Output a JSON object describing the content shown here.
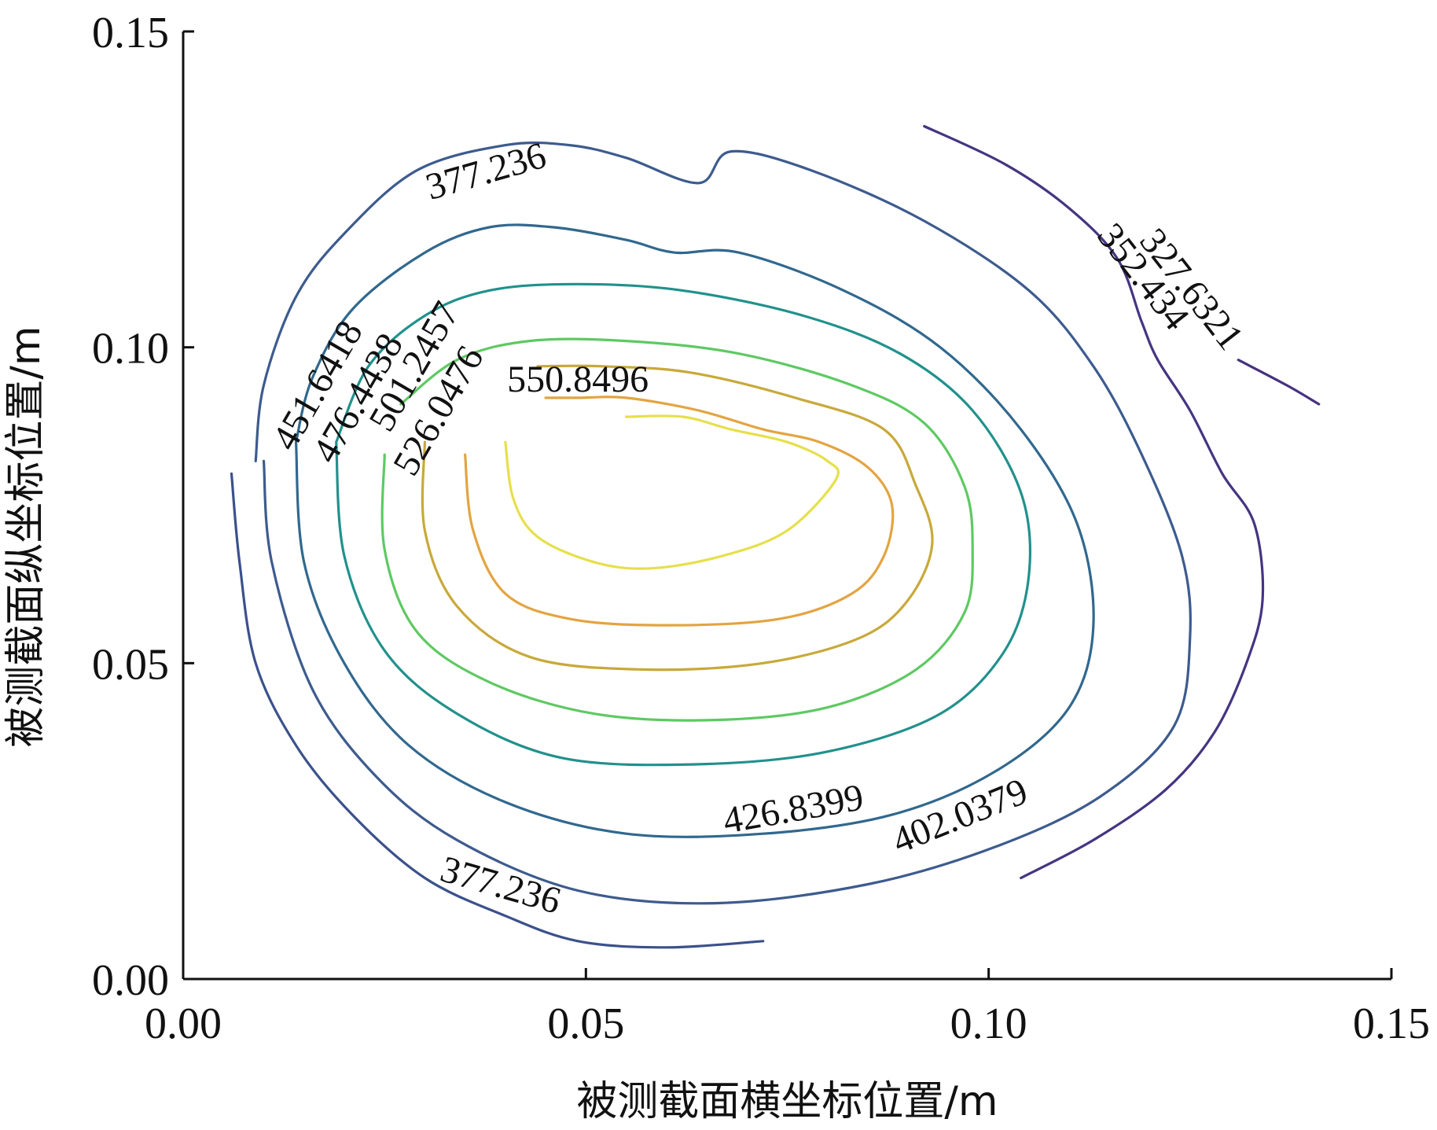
{
  "chart_data": {
    "type": "contour",
    "xlabel": "被测截面横坐标位置/m",
    "ylabel": "被测截面纵坐标位置/m",
    "xlim": [
      0,
      0.15
    ],
    "ylim": [
      0,
      0.15
    ],
    "xticks": [
      "0.00",
      "0.05",
      "0.10",
      "0.15"
    ],
    "yticks": [
      "0.00",
      "0.05",
      "0.10",
      "0.15"
    ],
    "xtick_values": [
      0,
      0.05,
      0.1,
      0.15
    ],
    "ytick_values": [
      0,
      0.05,
      0.1,
      0.15
    ],
    "colormap": "viridis",
    "contour_levels": [
      {
        "value": 327.6321,
        "label": "327.6321",
        "color": "#46327e",
        "points": [
          [
            0.131,
            0.098
          ],
          [
            0.137,
            0.094
          ],
          [
            0.141,
            0.091
          ]
        ]
      },
      {
        "value": 352.434,
        "label": "352.434",
        "color": "#453581",
        "points": [
          [
            0.092,
            0.135
          ],
          [
            0.102,
            0.129
          ],
          [
            0.11,
            0.122
          ],
          [
            0.116,
            0.114
          ],
          [
            0.119,
            0.104
          ],
          [
            0.121,
            0.098
          ],
          [
            0.125,
            0.09
          ],
          [
            0.129,
            0.08
          ],
          [
            0.133,
            0.072
          ],
          [
            0.134,
            0.06
          ],
          [
            0.132,
            0.05
          ],
          [
            0.128,
            0.039
          ],
          [
            0.122,
            0.03
          ],
          [
            0.113,
            0.022
          ],
          [
            0.104,
            0.016
          ]
        ]
      },
      {
        "value": 377.236,
        "label": "377.236",
        "color": "#3b518b",
        "points": [
          [
            0.006,
            0.08
          ],
          [
            0.007,
            0.066
          ],
          [
            0.009,
            0.05
          ],
          [
            0.014,
            0.037
          ],
          [
            0.021,
            0.026
          ],
          [
            0.03,
            0.016
          ],
          [
            0.04,
            0.01
          ],
          [
            0.049,
            0.006
          ],
          [
            0.06,
            0.005
          ],
          [
            0.072,
            0.006
          ]
        ]
      },
      {
        "value": 402.0379,
        "label": "402.0379",
        "color": "#3d5b8e",
        "points": [
          [
            0.01,
            0.082
          ],
          [
            0.011,
            0.066
          ],
          [
            0.016,
            0.046
          ],
          [
            0.024,
            0.032
          ],
          [
            0.034,
            0.022
          ],
          [
            0.049,
            0.014
          ],
          [
            0.066,
            0.012
          ],
          [
            0.085,
            0.015
          ],
          [
            0.101,
            0.021
          ],
          [
            0.114,
            0.029
          ],
          [
            0.123,
            0.04
          ],
          [
            0.125,
            0.054
          ],
          [
            0.124,
            0.067
          ],
          [
            0.119,
            0.083
          ],
          [
            0.113,
            0.097
          ],
          [
            0.105,
            0.109
          ],
          [
            0.092,
            0.12
          ],
          [
            0.078,
            0.128
          ],
          [
            0.068,
            0.131
          ],
          [
            0.064,
            0.126
          ],
          [
            0.055,
            0.13
          ],
          [
            0.048,
            0.132
          ],
          [
            0.04,
            0.132
          ],
          [
            0.029,
            0.128
          ],
          [
            0.02,
            0.118
          ],
          [
            0.014,
            0.108
          ],
          [
            0.01,
            0.094
          ],
          [
            0.009,
            0.082
          ]
        ]
      },
      {
        "value": 426.8399,
        "label": "426.8399",
        "color": "#31688e",
        "points": [
          [
            0.014,
            0.085
          ],
          [
            0.015,
            0.066
          ],
          [
            0.02,
            0.05
          ],
          [
            0.028,
            0.037
          ],
          [
            0.04,
            0.028
          ],
          [
            0.055,
            0.023
          ],
          [
            0.072,
            0.023
          ],
          [
            0.088,
            0.026
          ],
          [
            0.101,
            0.033
          ],
          [
            0.11,
            0.043
          ],
          [
            0.113,
            0.056
          ],
          [
            0.111,
            0.072
          ],
          [
            0.104,
            0.087
          ],
          [
            0.094,
            0.1
          ],
          [
            0.082,
            0.109
          ],
          [
            0.069,
            0.115
          ],
          [
            0.061,
            0.115
          ],
          [
            0.055,
            0.117
          ],
          [
            0.046,
            0.119
          ],
          [
            0.038,
            0.119
          ],
          [
            0.03,
            0.115
          ],
          [
            0.021,
            0.106
          ],
          [
            0.016,
            0.095
          ],
          [
            0.014,
            0.085
          ]
        ]
      },
      {
        "value": 451.6418,
        "label": "451.6418",
        "color": "#21918c",
        "points": [
          [
            0.019,
            0.085
          ],
          [
            0.02,
            0.067
          ],
          [
            0.025,
            0.052
          ],
          [
            0.034,
            0.042
          ],
          [
            0.047,
            0.035
          ],
          [
            0.064,
            0.034
          ],
          [
            0.08,
            0.036
          ],
          [
            0.094,
            0.042
          ],
          [
            0.102,
            0.052
          ],
          [
            0.105,
            0.064
          ],
          [
            0.104,
            0.077
          ],
          [
            0.098,
            0.09
          ],
          [
            0.089,
            0.099
          ],
          [
            0.077,
            0.105
          ],
          [
            0.062,
            0.109
          ],
          [
            0.049,
            0.11
          ],
          [
            0.038,
            0.109
          ],
          [
            0.03,
            0.105
          ],
          [
            0.023,
            0.097
          ],
          [
            0.019,
            0.085
          ]
        ]
      },
      {
        "value": 476.4438,
        "label": "476.4438",
        "color": "#5ec962",
        "points": [
          [
            0.025,
            0.083
          ],
          [
            0.025,
            0.068
          ],
          [
            0.029,
            0.055
          ],
          [
            0.038,
            0.047
          ],
          [
            0.051,
            0.042
          ],
          [
            0.066,
            0.041
          ],
          [
            0.08,
            0.043
          ],
          [
            0.091,
            0.049
          ],
          [
            0.097,
            0.058
          ],
          [
            0.098,
            0.068
          ],
          [
            0.097,
            0.078
          ],
          [
            0.092,
            0.088
          ],
          [
            0.083,
            0.094
          ],
          [
            0.069,
            0.099
          ],
          [
            0.055,
            0.101
          ],
          [
            0.043,
            0.101
          ],
          [
            0.034,
            0.098
          ],
          [
            0.027,
            0.091
          ]
        ]
      },
      {
        "value": 501.2457,
        "label": "501.2457",
        "color": "#c8a93a",
        "points": [
          [
            0.03,
            0.085
          ],
          [
            0.03,
            0.071
          ],
          [
            0.034,
            0.059
          ],
          [
            0.043,
            0.051
          ],
          [
            0.057,
            0.049
          ],
          [
            0.072,
            0.05
          ],
          [
            0.084,
            0.054
          ],
          [
            0.09,
            0.06
          ],
          [
            0.093,
            0.069
          ],
          [
            0.091,
            0.078
          ],
          [
            0.087,
            0.087
          ],
          [
            0.076,
            0.092
          ],
          [
            0.063,
            0.096
          ],
          [
            0.052,
            0.097
          ],
          [
            0.044,
            0.097
          ]
        ]
      },
      {
        "value": 526.0476,
        "label": "526.0476",
        "color": "#e3a441",
        "points": [
          [
            0.035,
            0.083
          ],
          [
            0.036,
            0.071
          ],
          [
            0.04,
            0.061
          ],
          [
            0.048,
            0.057
          ],
          [
            0.06,
            0.056
          ],
          [
            0.074,
            0.057
          ],
          [
            0.083,
            0.061
          ],
          [
            0.087,
            0.067
          ],
          [
            0.088,
            0.075
          ],
          [
            0.085,
            0.081
          ],
          [
            0.079,
            0.085
          ],
          [
            0.072,
            0.087
          ],
          [
            0.064,
            0.09
          ],
          [
            0.055,
            0.092
          ],
          [
            0.049,
            0.092
          ],
          [
            0.045,
            0.092
          ]
        ]
      },
      {
        "value": 550.8496,
        "label": "550.8496",
        "color": "#e6e04a",
        "points": [
          [
            0.04,
            0.085
          ],
          [
            0.041,
            0.076
          ],
          [
            0.044,
            0.07
          ],
          [
            0.051,
            0.066
          ],
          [
            0.058,
            0.065
          ],
          [
            0.067,
            0.067
          ],
          [
            0.075,
            0.071
          ],
          [
            0.081,
            0.079
          ],
          [
            0.08,
            0.082
          ],
          [
            0.075,
            0.085
          ],
          [
            0.068,
            0.087
          ],
          [
            0.062,
            0.089
          ],
          [
            0.055,
            0.089
          ]
        ]
      }
    ],
    "label_placements": [
      {
        "label": "377.236",
        "x": 0.038,
        "y": 0.126
      },
      {
        "label": "377.236",
        "x": 0.039,
        "y": 0.013
      },
      {
        "label": "327.6321",
        "x": 0.124,
        "y": 0.108
      },
      {
        "label": "352.434",
        "x": 0.118,
        "y": 0.11
      },
      {
        "label": "451.6418",
        "x": 0.018,
        "y": 0.093
      },
      {
        "label": "476.4438",
        "x": 0.023,
        "y": 0.091
      },
      {
        "label": "501.2457",
        "x": 0.03,
        "y": 0.096
      },
      {
        "label": "526.0476",
        "x": 0.033,
        "y": 0.089
      },
      {
        "label": "550.8496",
        "x": 0.049,
        "y": 0.093
      },
      {
        "label": "426.8399",
        "x": 0.076,
        "y": 0.025
      },
      {
        "label": "402.0379",
        "x": 0.097,
        "y": 0.024
      }
    ]
  }
}
